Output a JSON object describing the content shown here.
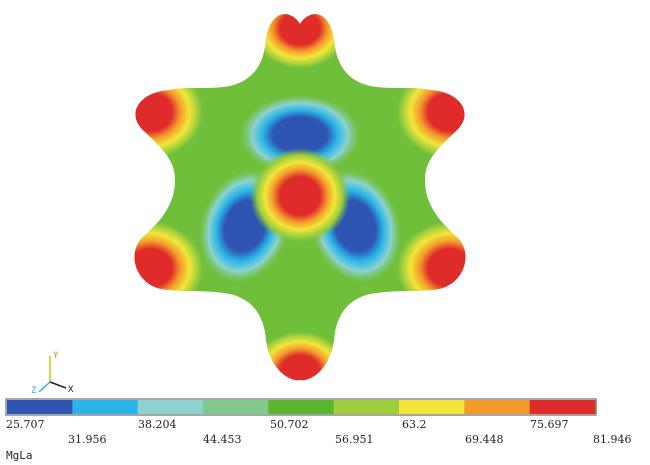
{
  "model_name": "MgLa",
  "axes": {
    "x": "X",
    "y": "Y",
    "z": "Z"
  },
  "legend": {
    "ticks_top": [
      "25.707",
      "38.204",
      "50.702",
      "63.2",
      "75.697"
    ],
    "ticks_bottom": [
      "31.956",
      "44.453",
      "56.951",
      "69.448",
      "81.946"
    ],
    "bins": [
      "#2f55b3",
      "#2ab4e8",
      "#8cd2cf",
      "#80c98a",
      "#5ab52e",
      "#9fce3c",
      "#f2e63a",
      "#f39a2b",
      "#e02b2b"
    ]
  }
}
